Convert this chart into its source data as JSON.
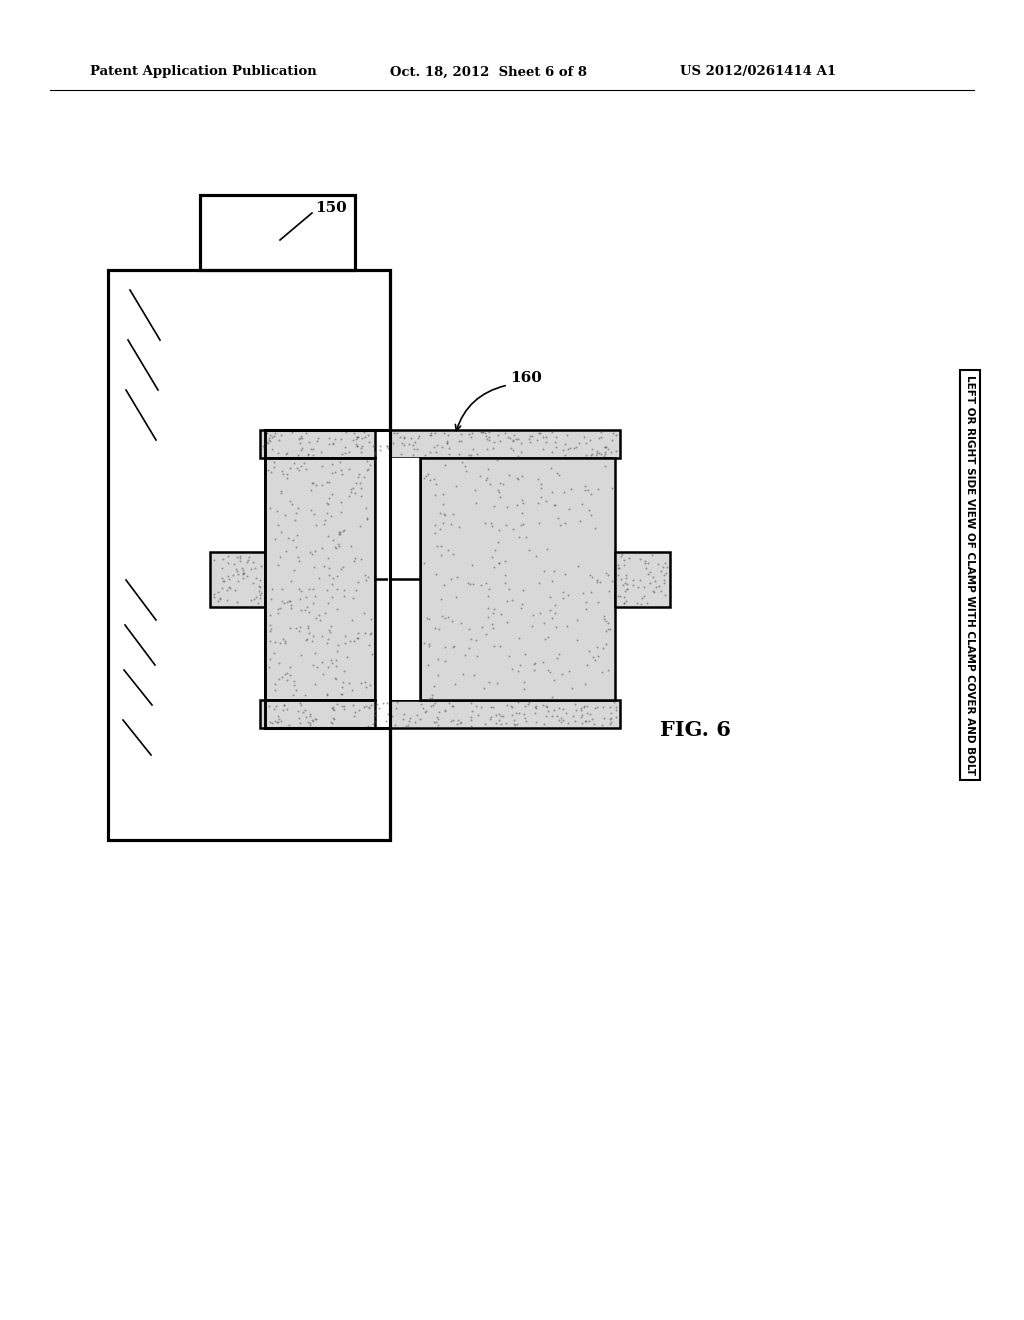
{
  "bg_color": "#ffffff",
  "line_color": "#000000",
  "dot_fill": "#d8d8d8",
  "header_text_left": "Patent Application Publication",
  "header_text_mid": "Oct. 18, 2012  Sheet 6 of 8",
  "header_text_right": "US 2012/0261414 A1",
  "fig_label": "FIG. 6",
  "caption_text": "LEFT OR RIGHT SIDE VIEW OF CLAMP WITH CLAMP COVER AND BOLT",
  "label_150": "150",
  "label_160": "160",
  "lw_thin": 1.2,
  "lw_med": 1.8,
  "lw_thick": 2.2
}
